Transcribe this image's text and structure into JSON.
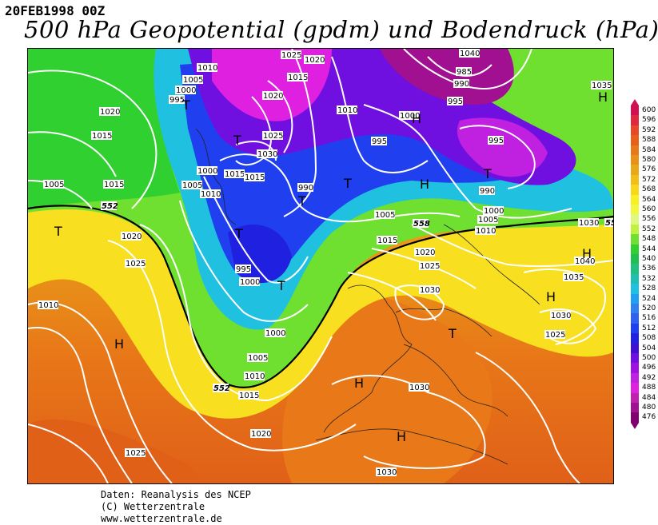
{
  "header": {
    "date": "20FEB1998 00Z",
    "title": "500 hPa Geopotential (gpdm) und Bodendruck (hPa)"
  },
  "credits": {
    "line1": "Daten: Reanalysis des NCEP",
    "line2": "(C) Wetterzentrale",
    "line3": "www.wetterzentrale.de"
  },
  "legend": {
    "values": [
      "600",
      "596",
      "592",
      "588",
      "584",
      "580",
      "576",
      "572",
      "568",
      "564",
      "560",
      "556",
      "552",
      "548",
      "544",
      "540",
      "536",
      "532",
      "528",
      "524",
      "520",
      "516",
      "512",
      "508",
      "504",
      "500",
      "496",
      "492",
      "488",
      "484",
      "480",
      "476"
    ],
    "colors": [
      "#d01050",
      "#e02840",
      "#e84828",
      "#e86018",
      "#e87818",
      "#e89018",
      "#e8a818",
      "#f0c018",
      "#f8d818",
      "#f8f020",
      "#f0f840",
      "#e0f880",
      "#c0f040",
      "#70e030",
      "#30d030",
      "#20c050",
      "#20c080",
      "#20c0b0",
      "#20c0e0",
      "#20a0f0",
      "#3080f0",
      "#3060f0",
      "#2040f0",
      "#2020e0",
      "#4010d0",
      "#7010e0",
      "#a010e0",
      "#c020e0",
      "#e020e0",
      "#c020b0",
      "#a01090",
      "#800070"
    ]
  },
  "map": {
    "pressure_labels": [
      "1010",
      "1005",
      "1000",
      "995",
      "1020",
      "1015",
      "1025",
      "1030",
      "1035",
      "990",
      "985",
      "1040"
    ],
    "geopotential_labels": [
      "552",
      "558"
    ],
    "systems": [
      "T",
      "H"
    ],
    "lows": [
      {
        "label": "T"
      },
      {
        "label": "T"
      },
      {
        "label": "T"
      },
      {
        "label": "T"
      },
      {
        "label": "T"
      },
      {
        "label": "T"
      },
      {
        "label": "T"
      },
      {
        "label": "T"
      },
      {
        "label": "T"
      }
    ],
    "highs": [
      {
        "label": "H"
      },
      {
        "label": "H"
      },
      {
        "label": "H"
      },
      {
        "label": "H"
      },
      {
        "label": "H"
      },
      {
        "label": "H"
      },
      {
        "label": "H"
      },
      {
        "label": "H"
      }
    ]
  }
}
